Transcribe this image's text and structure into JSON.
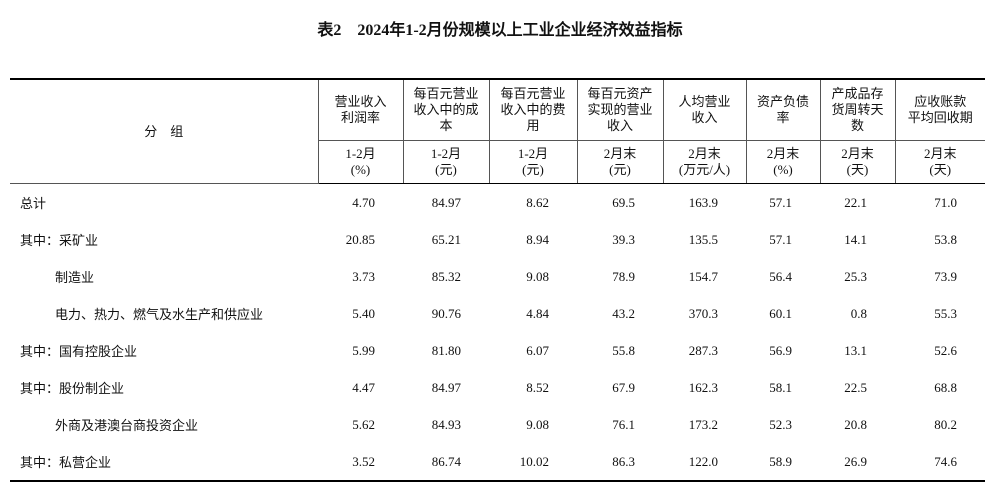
{
  "title": "表2　2024年1-2月份规模以上工业企业经济效益指标",
  "table": {
    "group_header": "分　组",
    "columns": [
      {
        "lines": [
          "营业收入",
          "利润率"
        ],
        "unit": [
          "1-2月",
          "(%)"
        ]
      },
      {
        "lines": [
          "每百元营业",
          "收入中的成",
          "本"
        ],
        "unit": [
          "1-2月",
          "(元)"
        ]
      },
      {
        "lines": [
          "每百元营业",
          "收入中的费",
          "用"
        ],
        "unit": [
          "1-2月",
          "(元)"
        ]
      },
      {
        "lines": [
          "每百元资产",
          "实现的营业",
          "收入"
        ],
        "unit": [
          "2月末",
          "(元)"
        ]
      },
      {
        "lines": [
          "人均营业",
          "收入"
        ],
        "unit": [
          "2月末",
          "(万元/人)"
        ]
      },
      {
        "lines": [
          "资产负债",
          "率"
        ],
        "unit": [
          "2月末",
          "(%)"
        ]
      },
      {
        "lines": [
          "产成品存",
          "货周转天",
          "数"
        ],
        "unit": [
          "2月末",
          "(天)"
        ]
      },
      {
        "lines": [
          "应收账款",
          "平均回收期"
        ],
        "unit": [
          "2月末",
          "(天)"
        ]
      }
    ],
    "rows": [
      {
        "label": "总计",
        "values": [
          "4.70",
          "84.97",
          "8.62",
          "69.5",
          "163.9",
          "57.1",
          "22.1",
          "71.0"
        ]
      },
      {
        "label": "其中：采矿业",
        "values": [
          "20.85",
          "65.21",
          "8.94",
          "39.3",
          "135.5",
          "57.1",
          "14.1",
          "53.8"
        ]
      },
      {
        "label": "制造业",
        "values": [
          "3.73",
          "85.32",
          "9.08",
          "78.9",
          "154.7",
          "56.4",
          "25.3",
          "73.9"
        ]
      },
      {
        "label": "电力、热力、燃气及水生产和供应业",
        "values": [
          "5.40",
          "90.76",
          "4.84",
          "43.2",
          "370.3",
          "60.1",
          "0.8",
          "55.3"
        ]
      },
      {
        "label": "其中：国有控股企业",
        "values": [
          "5.99",
          "81.80",
          "6.07",
          "55.8",
          "287.3",
          "56.9",
          "13.1",
          "52.6"
        ]
      },
      {
        "label": "其中：股份制企业",
        "values": [
          "4.47",
          "84.97",
          "8.52",
          "67.9",
          "162.3",
          "58.1",
          "22.5",
          "68.8"
        ]
      },
      {
        "label": "外商及港澳台商投资企业",
        "values": [
          "5.62",
          "84.93",
          "9.08",
          "76.1",
          "173.2",
          "52.3",
          "20.8",
          "80.2"
        ]
      },
      {
        "label": "其中：私营企业",
        "values": [
          "3.52",
          "86.74",
          "10.02",
          "86.3",
          "122.0",
          "58.9",
          "26.9",
          "74.6"
        ]
      }
    ]
  }
}
